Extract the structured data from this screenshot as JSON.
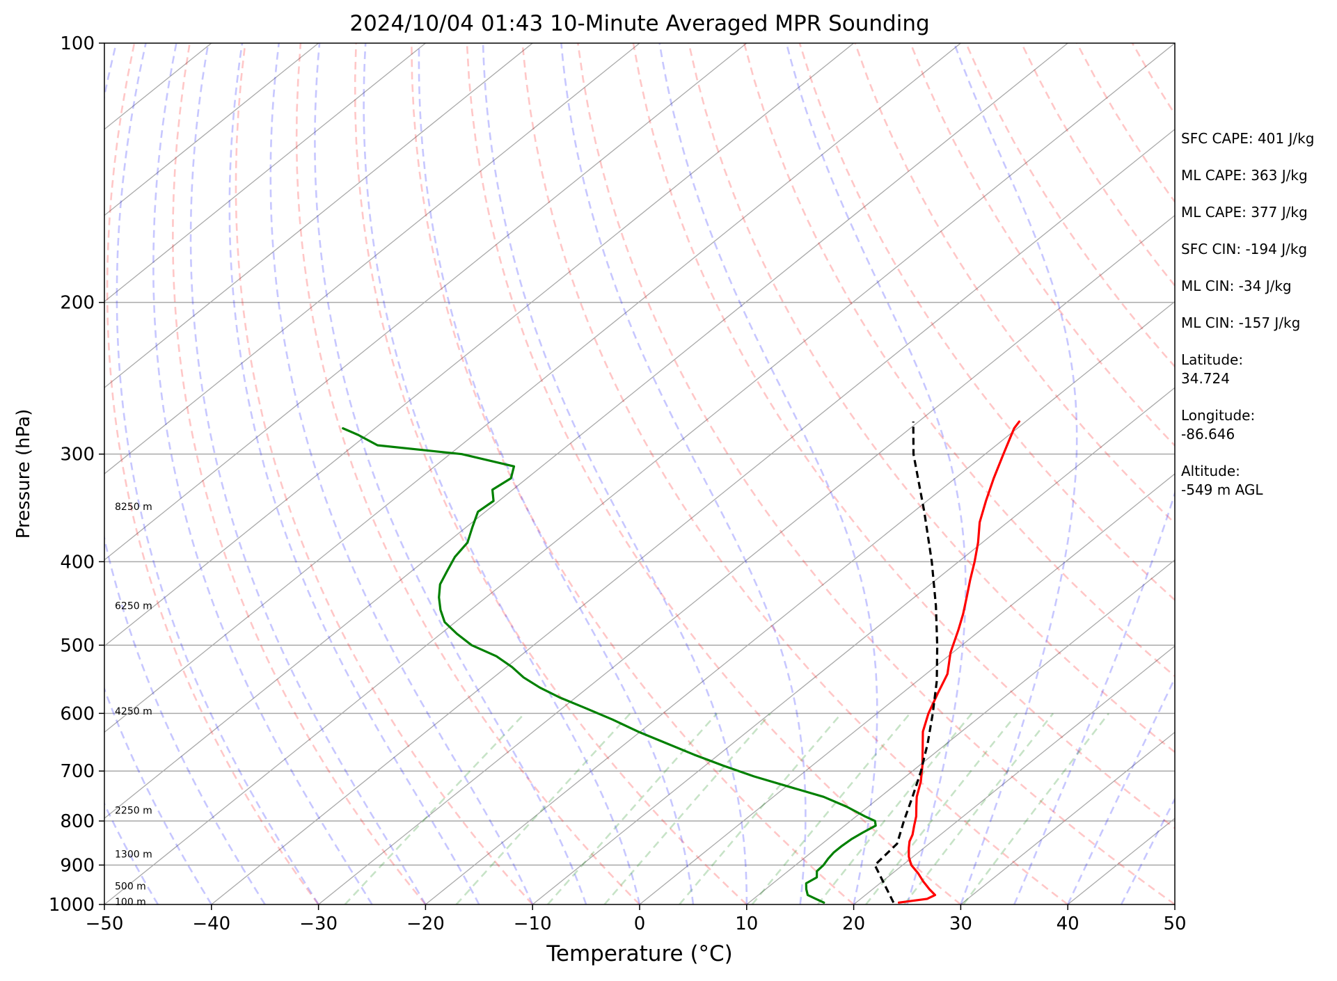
{
  "chart_data": {
    "type": "line",
    "title": "2024/10/04 01:43 10-Minute Averaged MPR Sounding",
    "xlabel": "Temperature (°C)",
    "ylabel": "Pressure (hPa)",
    "xlim": [
      -50,
      50
    ],
    "ylim": [
      1000,
      100
    ],
    "y_scale": "log",
    "x_ticks": [
      "−50",
      "−40",
      "−30",
      "−20",
      "−10",
      "0",
      "10",
      "20",
      "30",
      "40",
      "50"
    ],
    "x_tick_values": [
      -50,
      -40,
      -30,
      -20,
      -10,
      0,
      10,
      20,
      30,
      40,
      50
    ],
    "y_ticks": [
      "100",
      "200",
      "300",
      "400",
      "500",
      "600",
      "700",
      "800",
      "900",
      "1000"
    ],
    "y_tick_values": [
      100,
      200,
      300,
      400,
      500,
      600,
      700,
      800,
      900,
      1000
    ],
    "grid": true,
    "skew_factor": 1.0,
    "height_labels": [
      {
        "p": 345,
        "text": "8250 m"
      },
      {
        "p": 450,
        "text": "6250 m"
      },
      {
        "p": 596,
        "text": "4250 m"
      },
      {
        "p": 777,
        "text": "2250 m"
      },
      {
        "p": 874,
        "text": "1300 m"
      },
      {
        "p": 952,
        "text": "500 m"
      },
      {
        "p": 993,
        "text": "100 m"
      }
    ],
    "series": [
      {
        "key": "temperature",
        "color": "#ff0000",
        "style": "solid",
        "points": [
          [
            995,
            24
          ],
          [
            985,
            26.2
          ],
          [
            975,
            26.5
          ],
          [
            960,
            25.3
          ],
          [
            940,
            23.8
          ],
          [
            920,
            22.4
          ],
          [
            900,
            20.8
          ],
          [
            880,
            19.6
          ],
          [
            860,
            18.6
          ],
          [
            845,
            17.9
          ],
          [
            830,
            17.4
          ],
          [
            810,
            16.5
          ],
          [
            790,
            15.6
          ],
          [
            770,
            14.5
          ],
          [
            750,
            13.4
          ],
          [
            720,
            12.0
          ],
          [
            690,
            10.3
          ],
          [
            660,
            8.4
          ],
          [
            630,
            6.4
          ],
          [
            600,
            4.8
          ],
          [
            570,
            3.4
          ],
          [
            540,
            2.0
          ],
          [
            510,
            -0.2
          ],
          [
            480,
            -2.1
          ],
          [
            460,
            -3.5
          ],
          [
            440,
            -5.1
          ],
          [
            420,
            -6.8
          ],
          [
            400,
            -8.5
          ],
          [
            380,
            -10.4
          ],
          [
            360,
            -12.6
          ],
          [
            340,
            -14.5
          ],
          [
            320,
            -16.4
          ],
          [
            300,
            -18.3
          ],
          [
            280,
            -20.3
          ],
          [
            275,
            -20.6
          ]
        ]
      },
      {
        "key": "dewpoint",
        "color": "#008000",
        "style": "solid",
        "points": [
          [
            995,
            17.0
          ],
          [
            985,
            15.8
          ],
          [
            975,
            14.6
          ],
          [
            960,
            13.8
          ],
          [
            945,
            13.1
          ],
          [
            930,
            13.4
          ],
          [
            915,
            12.7
          ],
          [
            900,
            12.6
          ],
          [
            885,
            12.3
          ],
          [
            870,
            12.1
          ],
          [
            855,
            12.1
          ],
          [
            840,
            12.2
          ],
          [
            825,
            12.5
          ],
          [
            810,
            12.9
          ],
          [
            800,
            12.3
          ],
          [
            790,
            10.8
          ],
          [
            770,
            8.0
          ],
          [
            750,
            4.7
          ],
          [
            730,
            0.3
          ],
          [
            710,
            -4.2
          ],
          [
            690,
            -8.3
          ],
          [
            670,
            -12.3
          ],
          [
            650,
            -16.2
          ],
          [
            630,
            -20.2
          ],
          [
            610,
            -24.0
          ],
          [
            590,
            -28.2
          ],
          [
            575,
            -31.5
          ],
          [
            560,
            -34.5
          ],
          [
            545,
            -37.2
          ],
          [
            530,
            -39.5
          ],
          [
            515,
            -42.2
          ],
          [
            500,
            -45.8
          ],
          [
            485,
            -48.5
          ],
          [
            470,
            -51.0
          ],
          [
            455,
            -52.8
          ],
          [
            440,
            -54.4
          ],
          [
            425,
            -55.8
          ],
          [
            410,
            -56.7
          ],
          [
            395,
            -57.6
          ],
          [
            380,
            -58.1
          ],
          [
            365,
            -59.4
          ],
          [
            350,
            -60.7
          ],
          [
            340,
            -60.5
          ],
          [
            330,
            -61.9
          ],
          [
            320,
            -61.5
          ],
          [
            310,
            -62.6
          ],
          [
            300,
            -68.9
          ],
          [
            293,
            -77.8
          ],
          [
            285,
            -80.8
          ],
          [
            280,
            -83.0
          ]
        ]
      },
      {
        "key": "parcel",
        "color": "#000000",
        "style": "dashed",
        "points": [
          [
            995,
            23.5
          ],
          [
            900,
            17.4
          ],
          [
            850,
            17.0
          ],
          [
            800,
            15.0
          ],
          [
            750,
            13.0
          ],
          [
            700,
            10.8
          ],
          [
            650,
            8.2
          ],
          [
            600,
            5.2
          ],
          [
            550,
            1.8
          ],
          [
            500,
            -2.3
          ],
          [
            450,
            -7.0
          ],
          [
            400,
            -12.5
          ],
          [
            350,
            -19.0
          ],
          [
            300,
            -26.7
          ],
          [
            275,
            -30.5
          ]
        ]
      }
    ]
  },
  "stats": {
    "sfc_cape": "SFC CAPE: 401 J/kg",
    "ml_cape_1": "ML CAPE: 363 J/kg",
    "ml_cape_2": "ML CAPE: 377 J/kg",
    "sfc_cin": "SFC CIN: -194 J/kg",
    "ml_cin_1": "ML CIN: -34 J/kg",
    "ml_cin_2": "ML CIN: -157 J/kg",
    "latitude_label": "Latitude:",
    "latitude_value": "34.724",
    "longitude_label": "Longitude:",
    "longitude_value": "-86.646",
    "altitude_label": "Altitude:",
    "altitude_value": "-549 m AGL"
  }
}
